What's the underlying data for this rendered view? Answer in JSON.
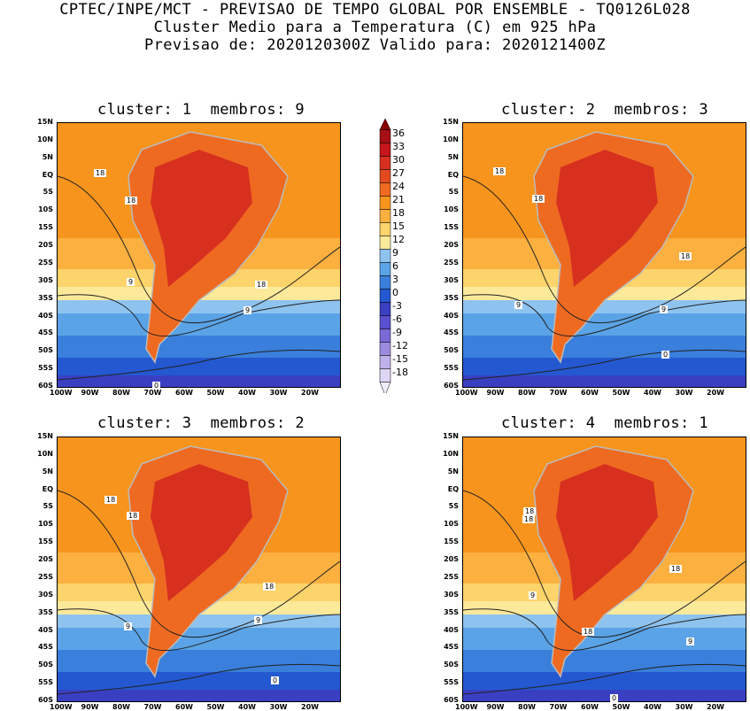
{
  "header": {
    "line1": "CPTEC/INPE/MCT - PREVISAO DE TEMPO GLOBAL POR ENSEMBLE - TQ0126L028",
    "line2": "Cluster Medio para a Temperatura (C) em 925 hPa",
    "line3": "Previsao de: 2020120300Z   Valido para: 2020121400Z"
  },
  "panels": [
    {
      "title": "cluster: 1  membros: 9"
    },
    {
      "title": "cluster: 2  membros: 3"
    },
    {
      "title": "cluster: 3  membros: 2"
    },
    {
      "title": "cluster: 4  membros: 1"
    }
  ],
  "axes": {
    "lat_labels": [
      "15N",
      "10N",
      "5N",
      "EQ",
      "5S",
      "10S",
      "15S",
      "20S",
      "25S",
      "30S",
      "35S",
      "40S",
      "45S",
      "50S",
      "55S",
      "60S"
    ],
    "lon_labels": [
      "100W",
      "90W",
      "80W",
      "70W",
      "60W",
      "50W",
      "40W",
      "30W",
      "20W"
    ]
  },
  "colorbar": {
    "labels": [
      "36",
      "33",
      "30",
      "27",
      "24",
      "21",
      "18",
      "15",
      "12",
      "9",
      "6",
      "3",
      "0",
      "-3",
      "-6",
      "-9",
      "-12",
      "-15",
      "-18"
    ],
    "colors": [
      "#a50f15",
      "#c4161c",
      "#d7301f",
      "#e34a1f",
      "#ef6a21",
      "#f7941d",
      "#fbb040",
      "#fdd36b",
      "#fde99a",
      "#8fc3ef",
      "#5aa3e6",
      "#3a7fdc",
      "#2458d0",
      "#3a3fc2",
      "#5a4fcf",
      "#7a6ad8",
      "#9c8ce0",
      "#bfb2ea",
      "#ddd6f5"
    ]
  },
  "contour_labels": {
    "p1": [
      "18",
      "18",
      "9",
      "18",
      "9",
      "0"
    ],
    "p2": [
      "18",
      "18",
      "9",
      "9",
      "18",
      "0"
    ],
    "p3": [
      "18",
      "18",
      "9",
      "18",
      "9",
      "0"
    ],
    "p4": [
      "18",
      "18",
      "9",
      "18",
      "18",
      "9",
      "0"
    ]
  }
}
